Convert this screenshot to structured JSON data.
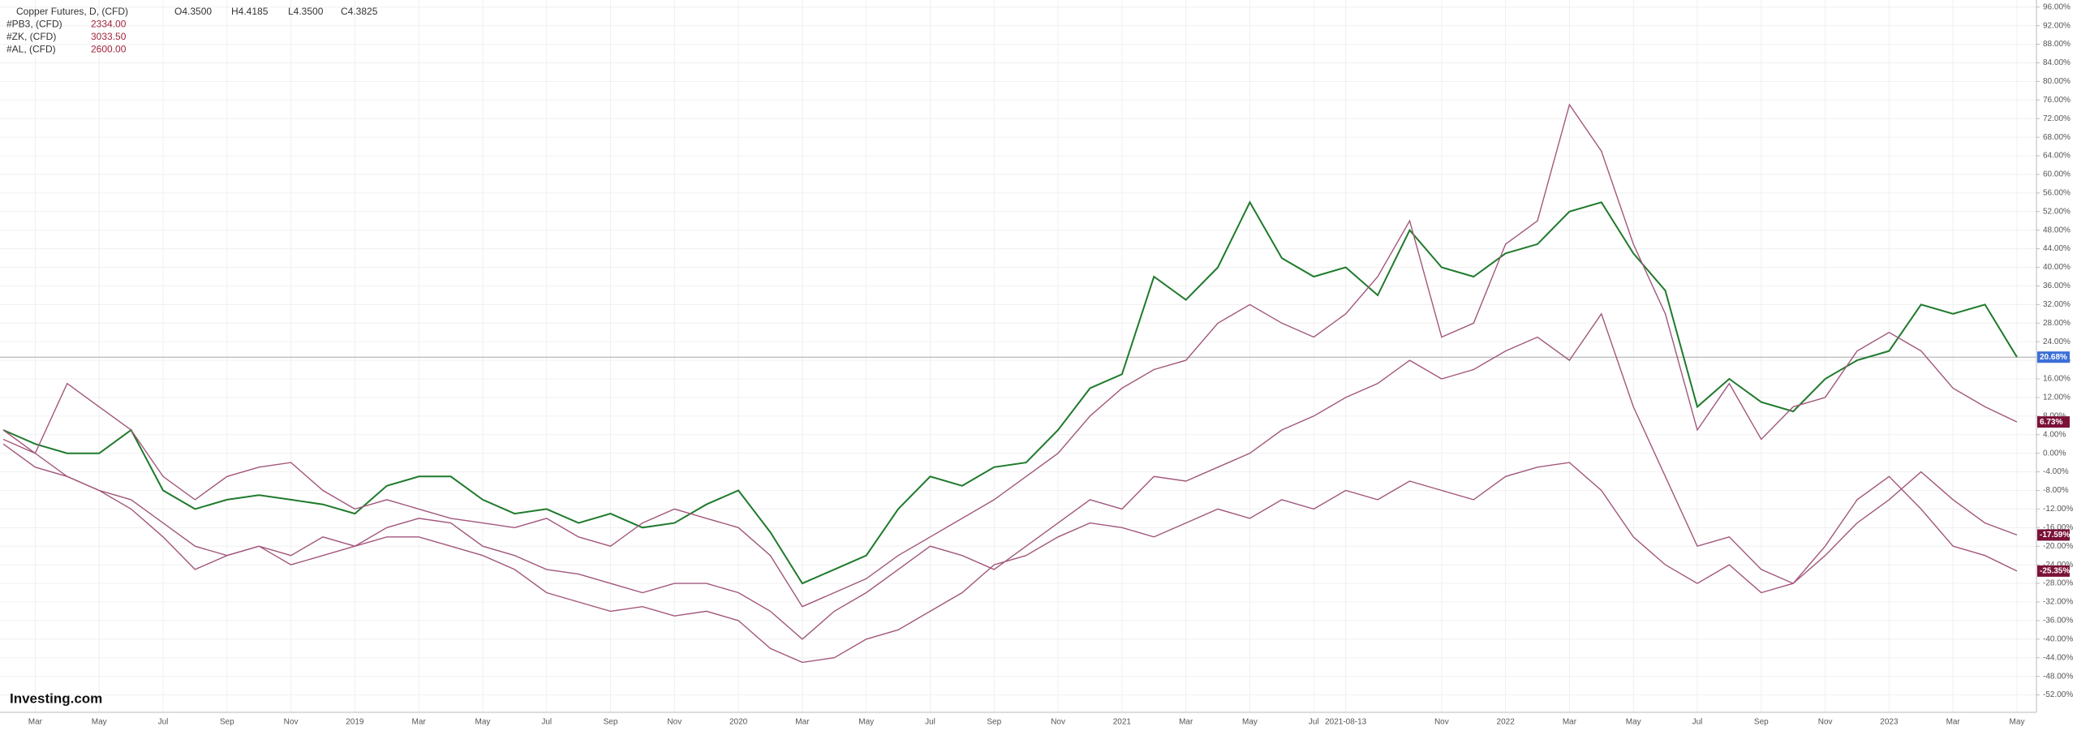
{
  "chart_data": {
    "type": "line",
    "legend": {
      "main": {
        "name": "Copper Futures, D, (CFD)",
        "open": "O4.3500",
        "high": "H4.4185",
        "low": "L4.3500",
        "close": "C4.3825"
      }
    },
    "logo": "Investing.com",
    "categories": [
      null,
      "Mar",
      null,
      "May",
      null,
      "Jul",
      null,
      "Sep",
      null,
      "Nov",
      null,
      "2019",
      null,
      "Mar",
      null,
      "May",
      null,
      "Jul",
      null,
      "Sep",
      null,
      "Nov",
      null,
      "2020",
      null,
      "Mar",
      null,
      "May",
      null,
      "Jul",
      null,
      "Sep",
      null,
      "Nov",
      null,
      "2021",
      null,
      "Mar",
      null,
      "May",
      null,
      "Jul",
      "2021-08-13",
      null,
      null,
      "Nov",
      null,
      "2022",
      null,
      "Mar",
      null,
      "May",
      null,
      "Jul",
      null,
      "Sep",
      null,
      "Nov",
      null,
      "2023",
      null,
      "Mar",
      null,
      "May"
    ],
    "series": [
      {
        "name": "Copper Futures, D, (CFD)",
        "color": "#1f7a2c",
        "tag_color": "#3b6fd6",
        "end_label": "20.68%",
        "values": [
          5,
          2,
          0,
          0,
          5,
          -8,
          -12,
          -10,
          -9,
          -10,
          -11,
          -13,
          -7,
          -5,
          -5,
          -10,
          -13,
          -12,
          -15,
          -13,
          -16,
          -15,
          -11,
          -8,
          -17,
          -28,
          -25,
          -22,
          -12,
          -5,
          -7,
          -3,
          -2,
          5,
          14,
          17,
          38,
          33,
          40,
          54,
          42,
          38,
          40,
          34,
          48,
          40,
          38,
          43,
          45,
          52,
          54,
          43,
          35,
          10,
          16,
          11,
          9,
          16,
          20,
          22,
          32,
          30,
          32,
          20.68
        ]
      },
      {
        "name": "#PB3, (CFD)",
        "price": "2334.00",
        "color": "#a2577c",
        "tag_color": "#7a1238",
        "end_label": "6.73%",
        "values": [
          5,
          0,
          15,
          10,
          5,
          -5,
          -10,
          -5,
          -3,
          -2,
          -8,
          -12,
          -10,
          -12,
          -14,
          -15,
          -16,
          -14,
          -18,
          -20,
          -15,
          -12,
          -14,
          -16,
          -22,
          -33,
          -30,
          -27,
          -22,
          -18,
          -14,
          -10,
          -5,
          0,
          8,
          14,
          18,
          20,
          28,
          32,
          28,
          25,
          30,
          38,
          50,
          25,
          28,
          45,
          50,
          75,
          65,
          45,
          30,
          5,
          15,
          3,
          10,
          12,
          22,
          26,
          22,
          14,
          10,
          6.73
        ]
      },
      {
        "name": "#ZK, (CFD)",
        "price": "3033.50",
        "color": "#a2577c",
        "tag_color": "#7a1238",
        "end_label": "-17.59%",
        "values": [
          3,
          0,
          -5,
          -8,
          -12,
          -18,
          -25,
          -22,
          -20,
          -22,
          -18,
          -20,
          -16,
          -14,
          -15,
          -20,
          -22,
          -25,
          -26,
          -28,
          -30,
          -28,
          -28,
          -30,
          -34,
          -40,
          -34,
          -30,
          -25,
          -20,
          -22,
          -25,
          -20,
          -15,
          -10,
          -12,
          -5,
          -6,
          -3,
          0,
          5,
          8,
          12,
          15,
          20,
          16,
          18,
          22,
          25,
          20,
          30,
          10,
          -5,
          -20,
          -18,
          -25,
          -28,
          -22,
          -15,
          -10,
          -4,
          -10,
          -15,
          -17.59
        ]
      },
      {
        "name": "#AL, (CFD)",
        "price": "2600.00",
        "color": "#a2577c",
        "tag_color": "#7a1238",
        "end_label": "-25.35%",
        "values": [
          2,
          -3,
          -5,
          -8,
          -10,
          -15,
          -20,
          -22,
          -20,
          -24,
          -22,
          -20,
          -18,
          -18,
          -20,
          -22,
          -25,
          -30,
          -32,
          -34,
          -33,
          -35,
          -34,
          -36,
          -42,
          -45,
          -44,
          -40,
          -38,
          -34,
          -30,
          -24,
          -22,
          -18,
          -15,
          -16,
          -18,
          -15,
          -12,
          -14,
          -10,
          -12,
          -8,
          -10,
          -6,
          -8,
          -10,
          -5,
          -3,
          -2,
          -8,
          -18,
          -24,
          -28,
          -24,
          -30,
          -28,
          -20,
          -10,
          -5,
          -12,
          -20,
          -22,
          -25.35
        ]
      }
    ],
    "ylim": [
      -54,
      97
    ],
    "yticks": [
      {
        "value": 96,
        "label": "96.00%"
      },
      {
        "value": 92,
        "label": "92.00%"
      },
      {
        "value": 88,
        "label": "88.00%"
      },
      {
        "value": 84,
        "label": "84.00%"
      },
      {
        "value": 80,
        "label": "80.00%"
      },
      {
        "value": 76,
        "label": "76.00%"
      },
      {
        "value": 72,
        "label": "72.00%"
      },
      {
        "value": 68,
        "label": "68.00%"
      },
      {
        "value": 64,
        "label": "64.00%"
      },
      {
        "value": 60,
        "label": "60.00%"
      },
      {
        "value": 56,
        "label": "56.00%"
      },
      {
        "value": 52,
        "label": "52.00%"
      },
      {
        "value": 48,
        "label": "48.00%"
      },
      {
        "value": 44,
        "label": "44.00%"
      },
      {
        "value": 40,
        "label": "40.00%"
      },
      {
        "value": 36,
        "label": "36.00%"
      },
      {
        "value": 32,
        "label": "32.00%"
      },
      {
        "value": 28,
        "label": "28.00%"
      },
      {
        "value": 24,
        "label": "24.00%"
      },
      {
        "value": 20,
        "label": "20.00%"
      },
      {
        "value": 16,
        "label": "16.00%"
      },
      {
        "value": 12,
        "label": "12.00%"
      },
      {
        "value": 8,
        "label": "8.00%"
      },
      {
        "value": 4,
        "label": "4.00%"
      },
      {
        "value": 0,
        "label": "0.00%"
      },
      {
        "value": -4,
        "label": "-4.00%"
      },
      {
        "value": -8,
        "label": "-8.00%"
      },
      {
        "value": -12,
        "label": "-12.00%"
      },
      {
        "value": -16,
        "label": "-16.00%"
      },
      {
        "value": -20,
        "label": "-20.00%"
      },
      {
        "value": -24,
        "label": "-24.00%"
      },
      {
        "value": -28,
        "label": "-28.00%"
      },
      {
        "value": -32,
        "label": "-32.00%"
      },
      {
        "value": -36,
        "label": "-36.00%"
      },
      {
        "value": -40,
        "label": "-40.00%"
      },
      {
        "value": -44,
        "label": "-44.00%"
      },
      {
        "value": -48,
        "label": "-48.00%"
      },
      {
        "value": -52,
        "label": "-52.00%"
      }
    ],
    "grid": true
  }
}
